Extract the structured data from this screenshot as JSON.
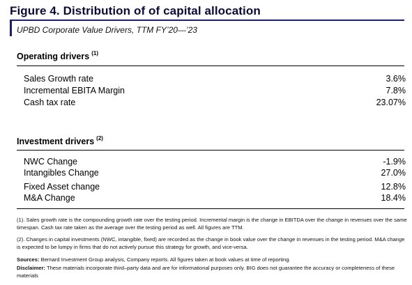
{
  "title": "Figure 4. Distribution of of capital allocation",
  "subtitle": "UPBD Corporate Value Drivers, TTM FY’20—’23",
  "operating": {
    "heading": "Operating drivers",
    "note_ref": "(1)",
    "rows": [
      {
        "label": "Sales Growth rate",
        "value": "3.6%"
      },
      {
        "label": "Incremental EBITA Margin",
        "value": "7.8%"
      },
      {
        "label": "Cash tax rate",
        "value": "23.07%"
      }
    ]
  },
  "investment": {
    "heading": "Investment drivers",
    "note_ref": "(2)",
    "rows": [
      {
        "label": "NWC Change",
        "value": "-1.9%"
      },
      {
        "label": "Intangibles Change",
        "value": "27.0%"
      },
      {
        "label": "Fixed Asset change",
        "value": "12.8%"
      },
      {
        "label": "M&A Change",
        "value": "18.4%"
      }
    ]
  },
  "notes": {
    "note1": "(1). Sales growth rate is the compounding growth rate over the testing period. Incremental margin is the change in EBITDA over the change in revenues over the same timespan. Cash tax rate taken as the average over the testing period as well. All figures are TTM.",
    "note2": "(2). Changes in capital investments (NWC, intangible, fixed) are recorded as the change in book value over the change in revenues in the testing period. M&A change is expected to be lumpy in firms that do not actively pursue this strategy for growth, and vice-versa.",
    "sources_label": "Sources:",
    "sources_text": "Bernard Investment Group analysis, Company reports. All figures taken at book values at time of reporting.",
    "disclaimer_label": "Disclaimer:",
    "disclaimer_text": "These materials incorporate third–party data and are for informational purposes only. BIG does not guarantee the accuracy or completeness of these materials"
  }
}
